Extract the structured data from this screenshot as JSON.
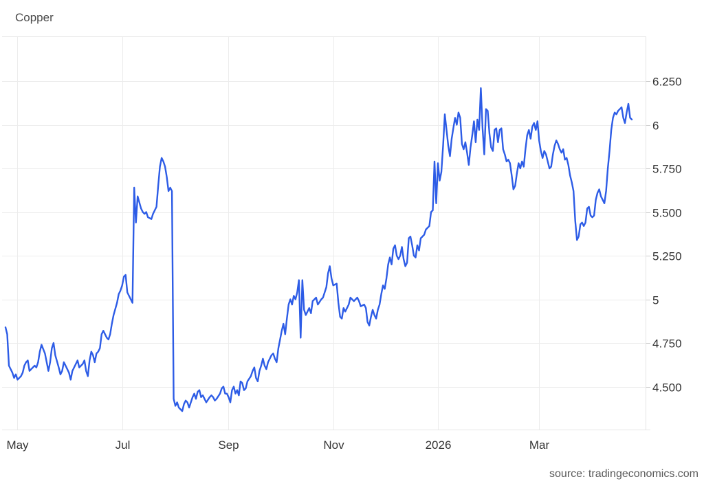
{
  "title": "Copper",
  "attribution": "source: tradingeconomics.com",
  "chart_data": {
    "type": "line",
    "title": "Copper",
    "line_color": "#2d5ce6",
    "grid": true,
    "grid_color": "#ececec",
    "border_color": "#e4e4e4",
    "tick_color": "#cccccc",
    "label_color": "#333333",
    "legend": "none",
    "x_axis": {
      "range": [
        "2025-04-22",
        "2026-05-02"
      ],
      "ticks": [
        {
          "date": "2025-05-01",
          "label": "May"
        },
        {
          "date": "2025-07-01",
          "label": "Jul"
        },
        {
          "date": "2025-09-01",
          "label": "Sep"
        },
        {
          "date": "2025-11-01",
          "label": "Nov"
        },
        {
          "date": "2026-01-01",
          "label": "2026"
        },
        {
          "date": "2026-03-01",
          "label": "Mar"
        }
      ]
    },
    "y_axis": {
      "side": "right",
      "range": [
        4.254,
        6.506
      ],
      "ticks": [
        {
          "value": 4.5,
          "label": "4.500"
        },
        {
          "value": 4.75,
          "label": "4.750"
        },
        {
          "value": 5,
          "label": "5"
        },
        {
          "value": 5.25,
          "label": "5.250"
        },
        {
          "value": 5.5,
          "label": "5.500"
        },
        {
          "value": 5.75,
          "label": "5.750"
        },
        {
          "value": 6,
          "label": "6"
        },
        {
          "value": 6.25,
          "label": "6.250"
        }
      ]
    },
    "points": [
      [
        "2025-04-24",
        4.84
      ],
      [
        "2025-04-25",
        4.8
      ],
      [
        "2025-04-26",
        4.62
      ],
      [
        "2025-04-28",
        4.58
      ],
      [
        "2025-04-29",
        4.55
      ],
      [
        "2025-04-30",
        4.57
      ],
      [
        "2025-05-01",
        4.54
      ],
      [
        "2025-05-03",
        4.56
      ],
      [
        "2025-05-04",
        4.58
      ],
      [
        "2025-05-05",
        4.62
      ],
      [
        "2025-05-06",
        4.64
      ],
      [
        "2025-05-07",
        4.65
      ],
      [
        "2025-05-08",
        4.59
      ],
      [
        "2025-05-09",
        4.6
      ],
      [
        "2025-05-11",
        4.62
      ],
      [
        "2025-05-12",
        4.61
      ],
      [
        "2025-05-13",
        4.64
      ],
      [
        "2025-05-14",
        4.7
      ],
      [
        "2025-05-15",
        4.74
      ],
      [
        "2025-05-17",
        4.69
      ],
      [
        "2025-05-18",
        4.64
      ],
      [
        "2025-05-19",
        4.59
      ],
      [
        "2025-05-20",
        4.64
      ],
      [
        "2025-05-21",
        4.72
      ],
      [
        "2025-05-22",
        4.75
      ],
      [
        "2025-05-23",
        4.68
      ],
      [
        "2025-05-25",
        4.61
      ],
      [
        "2025-05-26",
        4.57
      ],
      [
        "2025-05-27",
        4.59
      ],
      [
        "2025-05-28",
        4.64
      ],
      [
        "2025-05-29",
        4.62
      ],
      [
        "2025-05-31",
        4.58
      ],
      [
        "2025-06-01",
        4.54
      ],
      [
        "2025-06-02",
        4.59
      ],
      [
        "2025-06-03",
        4.61
      ],
      [
        "2025-06-04",
        4.63
      ],
      [
        "2025-06-05",
        4.65
      ],
      [
        "2025-06-06",
        4.61
      ],
      [
        "2025-06-08",
        4.63
      ],
      [
        "2025-06-09",
        4.65
      ],
      [
        "2025-06-10",
        4.59
      ],
      [
        "2025-06-11",
        4.56
      ],
      [
        "2025-06-12",
        4.65
      ],
      [
        "2025-06-13",
        4.7
      ],
      [
        "2025-06-14",
        4.68
      ],
      [
        "2025-06-15",
        4.64
      ],
      [
        "2025-06-16",
        4.69
      ],
      [
        "2025-06-17",
        4.7
      ],
      [
        "2025-06-18",
        4.72
      ],
      [
        "2025-06-19",
        4.8
      ],
      [
        "2025-06-20",
        4.82
      ],
      [
        "2025-06-22",
        4.78
      ],
      [
        "2025-06-23",
        4.77
      ],
      [
        "2025-06-24",
        4.8
      ],
      [
        "2025-06-25",
        4.86
      ],
      [
        "2025-06-26",
        4.91
      ],
      [
        "2025-06-28",
        4.98
      ],
      [
        "2025-06-29",
        5.03
      ],
      [
        "2025-06-30",
        5.05
      ],
      [
        "2025-07-01",
        5.08
      ],
      [
        "2025-07-02",
        5.13
      ],
      [
        "2025-07-03",
        5.14
      ],
      [
        "2025-07-04",
        5.04
      ],
      [
        "2025-07-06",
        5.0
      ],
      [
        "2025-07-07",
        4.98
      ],
      [
        "2025-07-08",
        5.64
      ],
      [
        "2025-07-09",
        5.44
      ],
      [
        "2025-07-10",
        5.59
      ],
      [
        "2025-07-12",
        5.52
      ],
      [
        "2025-07-13",
        5.5
      ],
      [
        "2025-07-14",
        5.49
      ],
      [
        "2025-07-15",
        5.5
      ],
      [
        "2025-07-16",
        5.47
      ],
      [
        "2025-07-18",
        5.46
      ],
      [
        "2025-07-19",
        5.49
      ],
      [
        "2025-07-20",
        5.51
      ],
      [
        "2025-07-21",
        5.53
      ],
      [
        "2025-07-22",
        5.65
      ],
      [
        "2025-07-23",
        5.76
      ],
      [
        "2025-07-24",
        5.81
      ],
      [
        "2025-07-25",
        5.79
      ],
      [
        "2025-07-26",
        5.76
      ],
      [
        "2025-07-27",
        5.7
      ],
      [
        "2025-07-28",
        5.62
      ],
      [
        "2025-07-29",
        5.64
      ],
      [
        "2025-07-30",
        5.62
      ],
      [
        "2025-07-31",
        4.43
      ],
      [
        "2025-08-01",
        4.39
      ],
      [
        "2025-08-02",
        4.41
      ],
      [
        "2025-08-03",
        4.38
      ],
      [
        "2025-08-05",
        4.36
      ],
      [
        "2025-08-06",
        4.4
      ],
      [
        "2025-08-07",
        4.42
      ],
      [
        "2025-08-08",
        4.41
      ],
      [
        "2025-08-09",
        4.38
      ],
      [
        "2025-08-11",
        4.44
      ],
      [
        "2025-08-12",
        4.46
      ],
      [
        "2025-08-13",
        4.43
      ],
      [
        "2025-08-14",
        4.47
      ],
      [
        "2025-08-15",
        4.48
      ],
      [
        "2025-08-16",
        4.44
      ],
      [
        "2025-08-17",
        4.45
      ],
      [
        "2025-08-18",
        4.43
      ],
      [
        "2025-08-19",
        4.41
      ],
      [
        "2025-08-21",
        4.44
      ],
      [
        "2025-08-22",
        4.45
      ],
      [
        "2025-08-23",
        4.44
      ],
      [
        "2025-08-24",
        4.42
      ],
      [
        "2025-08-25",
        4.43
      ],
      [
        "2025-08-27",
        4.46
      ],
      [
        "2025-08-28",
        4.49
      ],
      [
        "2025-08-29",
        4.5
      ],
      [
        "2025-08-30",
        4.46
      ],
      [
        "2025-08-31",
        4.46
      ],
      [
        "2025-09-01",
        4.44
      ],
      [
        "2025-09-02",
        4.41
      ],
      [
        "2025-09-03",
        4.48
      ],
      [
        "2025-09-04",
        4.5
      ],
      [
        "2025-09-05",
        4.46
      ],
      [
        "2025-09-06",
        4.48
      ],
      [
        "2025-09-07",
        4.45
      ],
      [
        "2025-09-08",
        4.53
      ],
      [
        "2025-09-09",
        4.52
      ],
      [
        "2025-09-10",
        4.48
      ],
      [
        "2025-09-11",
        4.49
      ],
      [
        "2025-09-12",
        4.53
      ],
      [
        "2025-09-14",
        4.56
      ],
      [
        "2025-09-15",
        4.59
      ],
      [
        "2025-09-16",
        4.61
      ],
      [
        "2025-09-17",
        4.55
      ],
      [
        "2025-09-18",
        4.53
      ],
      [
        "2025-09-19",
        4.59
      ],
      [
        "2025-09-20",
        4.62
      ],
      [
        "2025-09-21",
        4.66
      ],
      [
        "2025-09-22",
        4.62
      ],
      [
        "2025-09-23",
        4.6
      ],
      [
        "2025-09-24",
        4.64
      ],
      [
        "2025-09-26",
        4.68
      ],
      [
        "2025-09-27",
        4.69
      ],
      [
        "2025-09-28",
        4.66
      ],
      [
        "2025-09-29",
        4.64
      ],
      [
        "2025-09-30",
        4.72
      ],
      [
        "2025-10-01",
        4.77
      ],
      [
        "2025-10-02",
        4.82
      ],
      [
        "2025-10-03",
        4.86
      ],
      [
        "2025-10-04",
        4.8
      ],
      [
        "2025-10-05",
        4.89
      ],
      [
        "2025-10-06",
        4.97
      ],
      [
        "2025-10-07",
        5.0
      ],
      [
        "2025-10-08",
        4.97
      ],
      [
        "2025-10-09",
        5.02
      ],
      [
        "2025-10-10",
        5.0
      ],
      [
        "2025-10-11",
        5.04
      ],
      [
        "2025-10-12",
        5.11
      ],
      [
        "2025-10-13",
        4.78
      ],
      [
        "2025-10-14",
        5.11
      ],
      [
        "2025-10-15",
        4.94
      ],
      [
        "2025-10-16",
        4.91
      ],
      [
        "2025-10-18",
        4.95
      ],
      [
        "2025-10-19",
        4.92
      ],
      [
        "2025-10-20",
        4.99
      ],
      [
        "2025-10-22",
        5.01
      ],
      [
        "2025-10-23",
        4.97
      ],
      [
        "2025-10-25",
        5.0
      ],
      [
        "2025-10-26",
        5.01
      ],
      [
        "2025-10-28",
        5.07
      ],
      [
        "2025-10-29",
        5.15
      ],
      [
        "2025-10-30",
        5.19
      ],
      [
        "2025-10-31",
        5.12
      ],
      [
        "2025-11-01",
        5.08
      ],
      [
        "2025-11-03",
        5.09
      ],
      [
        "2025-11-04",
        4.98
      ],
      [
        "2025-11-05",
        4.9
      ],
      [
        "2025-11-06",
        4.89
      ],
      [
        "2025-11-07",
        4.95
      ],
      [
        "2025-11-08",
        4.93
      ],
      [
        "2025-11-10",
        4.97
      ],
      [
        "2025-11-11",
        5.01
      ],
      [
        "2025-11-12",
        5.0
      ],
      [
        "2025-11-13",
        4.99
      ],
      [
        "2025-11-15",
        5.01
      ],
      [
        "2025-11-16",
        4.99
      ],
      [
        "2025-11-17",
        4.96
      ],
      [
        "2025-11-19",
        4.97
      ],
      [
        "2025-11-20",
        4.95
      ],
      [
        "2025-11-21",
        4.87
      ],
      [
        "2025-11-22",
        4.85
      ],
      [
        "2025-11-23",
        4.9
      ],
      [
        "2025-11-24",
        4.94
      ],
      [
        "2025-11-25",
        4.91
      ],
      [
        "2025-11-26",
        4.89
      ],
      [
        "2025-11-27",
        4.94
      ],
      [
        "2025-11-28",
        4.97
      ],
      [
        "2025-11-29",
        5.03
      ],
      [
        "2025-11-30",
        5.08
      ],
      [
        "2025-12-01",
        5.06
      ],
      [
        "2025-12-02",
        5.12
      ],
      [
        "2025-12-03",
        5.2
      ],
      [
        "2025-12-04",
        5.24
      ],
      [
        "2025-12-05",
        5.2
      ],
      [
        "2025-12-06",
        5.29
      ],
      [
        "2025-12-07",
        5.31
      ],
      [
        "2025-12-08",
        5.25
      ],
      [
        "2025-12-09",
        5.23
      ],
      [
        "2025-12-10",
        5.25
      ],
      [
        "2025-12-11",
        5.3
      ],
      [
        "2025-12-12",
        5.23
      ],
      [
        "2025-12-13",
        5.19
      ],
      [
        "2025-12-14",
        5.21
      ],
      [
        "2025-12-15",
        5.35
      ],
      [
        "2025-12-16",
        5.36
      ],
      [
        "2025-12-17",
        5.31
      ],
      [
        "2025-12-18",
        5.25
      ],
      [
        "2025-12-19",
        5.24
      ],
      [
        "2025-12-20",
        5.31
      ],
      [
        "2025-12-21",
        5.28
      ],
      [
        "2025-12-22",
        5.35
      ],
      [
        "2025-12-23",
        5.36
      ],
      [
        "2025-12-24",
        5.37
      ],
      [
        "2025-12-25",
        5.4
      ],
      [
        "2025-12-26",
        5.41
      ],
      [
        "2025-12-27",
        5.42
      ],
      [
        "2025-12-28",
        5.5
      ],
      [
        "2025-12-29",
        5.51
      ],
      [
        "2025-12-30",
        5.79
      ],
      [
        "2025-12-31",
        5.55
      ],
      [
        "2026-01-01",
        5.78
      ],
      [
        "2026-01-02",
        5.68
      ],
      [
        "2026-01-03",
        5.73
      ],
      [
        "2026-01-04",
        5.88
      ],
      [
        "2026-01-05",
        6.06
      ],
      [
        "2026-01-06",
        5.97
      ],
      [
        "2026-01-07",
        5.88
      ],
      [
        "2026-01-08",
        5.82
      ],
      [
        "2026-01-09",
        5.92
      ],
      [
        "2026-01-10",
        5.98
      ],
      [
        "2026-01-11",
        6.04
      ],
      [
        "2026-01-12",
        6.0
      ],
      [
        "2026-01-13",
        6.07
      ],
      [
        "2026-01-14",
        6.04
      ],
      [
        "2026-01-15",
        5.89
      ],
      [
        "2026-01-16",
        5.86
      ],
      [
        "2026-01-17",
        5.9
      ],
      [
        "2026-01-18",
        5.84
      ],
      [
        "2026-01-19",
        5.77
      ],
      [
        "2026-01-20",
        5.87
      ],
      [
        "2026-01-21",
        5.94
      ],
      [
        "2026-01-22",
        6.02
      ],
      [
        "2026-01-23",
        5.9
      ],
      [
        "2026-01-24",
        6.03
      ],
      [
        "2026-01-25",
        5.97
      ],
      [
        "2026-01-26",
        6.21
      ],
      [
        "2026-01-27",
        5.98
      ],
      [
        "2026-01-28",
        5.83
      ],
      [
        "2026-01-29",
        6.09
      ],
      [
        "2026-01-30",
        6.08
      ],
      [
        "2026-01-31",
        5.95
      ],
      [
        "2026-02-01",
        5.87
      ],
      [
        "2026-02-02",
        5.85
      ],
      [
        "2026-02-03",
        5.97
      ],
      [
        "2026-02-04",
        5.98
      ],
      [
        "2026-02-05",
        5.9
      ],
      [
        "2026-02-06",
        5.97
      ],
      [
        "2026-02-07",
        5.98
      ],
      [
        "2026-02-08",
        5.86
      ],
      [
        "2026-02-09",
        5.83
      ],
      [
        "2026-02-10",
        5.79
      ],
      [
        "2026-02-11",
        5.8
      ],
      [
        "2026-02-12",
        5.78
      ],
      [
        "2026-02-13",
        5.71
      ],
      [
        "2026-02-14",
        5.63
      ],
      [
        "2026-02-15",
        5.65
      ],
      [
        "2026-02-16",
        5.72
      ],
      [
        "2026-02-17",
        5.78
      ],
      [
        "2026-02-18",
        5.75
      ],
      [
        "2026-02-19",
        5.79
      ],
      [
        "2026-02-20",
        5.76
      ],
      [
        "2026-02-21",
        5.86
      ],
      [
        "2026-02-22",
        5.94
      ],
      [
        "2026-02-23",
        5.97
      ],
      [
        "2026-02-24",
        5.92
      ],
      [
        "2026-02-25",
        5.99
      ],
      [
        "2026-02-26",
        6.01
      ],
      [
        "2026-02-27",
        5.97
      ],
      [
        "2026-02-28",
        6.02
      ],
      [
        "2026-03-01",
        5.91
      ],
      [
        "2026-03-02",
        5.85
      ],
      [
        "2026-03-03",
        5.81
      ],
      [
        "2026-03-04",
        5.85
      ],
      [
        "2026-03-05",
        5.83
      ],
      [
        "2026-03-06",
        5.79
      ],
      [
        "2026-03-07",
        5.75
      ],
      [
        "2026-03-08",
        5.76
      ],
      [
        "2026-03-09",
        5.83
      ],
      [
        "2026-03-10",
        5.88
      ],
      [
        "2026-03-11",
        5.91
      ],
      [
        "2026-03-12",
        5.89
      ],
      [
        "2026-03-13",
        5.86
      ],
      [
        "2026-03-14",
        5.84
      ],
      [
        "2026-03-15",
        5.86
      ],
      [
        "2026-03-16",
        5.8
      ],
      [
        "2026-03-17",
        5.81
      ],
      [
        "2026-03-18",
        5.77
      ],
      [
        "2026-03-19",
        5.71
      ],
      [
        "2026-03-20",
        5.67
      ],
      [
        "2026-03-21",
        5.62
      ],
      [
        "2026-03-22",
        5.45
      ],
      [
        "2026-03-23",
        5.34
      ],
      [
        "2026-03-24",
        5.36
      ],
      [
        "2026-03-25",
        5.43
      ],
      [
        "2026-03-26",
        5.44
      ],
      [
        "2026-03-27",
        5.42
      ],
      [
        "2026-03-28",
        5.44
      ],
      [
        "2026-03-29",
        5.52
      ],
      [
        "2026-03-30",
        5.53
      ],
      [
        "2026-03-31",
        5.48
      ],
      [
        "2026-04-01",
        5.47
      ],
      [
        "2026-04-02",
        5.48
      ],
      [
        "2026-04-03",
        5.57
      ],
      [
        "2026-04-04",
        5.61
      ],
      [
        "2026-04-05",
        5.63
      ],
      [
        "2026-04-06",
        5.59
      ],
      [
        "2026-04-07",
        5.57
      ],
      [
        "2026-04-08",
        5.55
      ],
      [
        "2026-04-09",
        5.62
      ],
      [
        "2026-04-10",
        5.75
      ],
      [
        "2026-04-11",
        5.85
      ],
      [
        "2026-04-12",
        5.97
      ],
      [
        "2026-04-13",
        6.04
      ],
      [
        "2026-04-14",
        6.07
      ],
      [
        "2026-04-15",
        6.06
      ],
      [
        "2026-04-16",
        6.08
      ],
      [
        "2026-04-17",
        6.09
      ],
      [
        "2026-04-18",
        6.1
      ],
      [
        "2026-04-19",
        6.04
      ],
      [
        "2026-04-20",
        6.01
      ],
      [
        "2026-04-21",
        6.07
      ],
      [
        "2026-04-22",
        6.12
      ],
      [
        "2026-04-23",
        6.04
      ],
      [
        "2026-04-24",
        6.03
      ]
    ]
  }
}
